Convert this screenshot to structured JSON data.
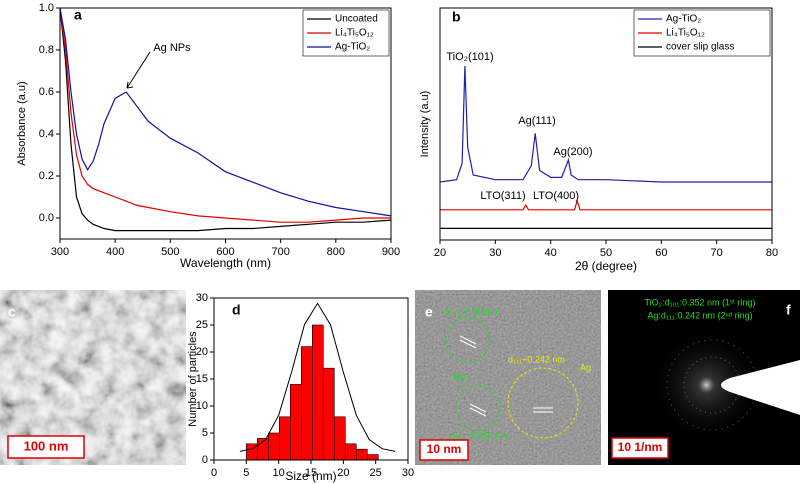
{
  "chart_data": [
    {
      "type": "line",
      "panel": "a",
      "xlabel": "Wavelength (nm)",
      "ylabel": "Absorbance (a.u)",
      "x": [
        300,
        310,
        320,
        330,
        340,
        350,
        360,
        370,
        380,
        400,
        420,
        440,
        460,
        500,
        550,
        600,
        650,
        700,
        750,
        800,
        850,
        900
      ],
      "series": [
        {
          "name": "Uncoated",
          "color": "#000000",
          "values": [
            1.0,
            0.75,
            0.35,
            0.1,
            0.02,
            -0.01,
            -0.03,
            -0.04,
            -0.05,
            -0.06,
            -0.06,
            -0.06,
            -0.06,
            -0.06,
            -0.06,
            -0.05,
            -0.05,
            -0.04,
            -0.03,
            -0.02,
            -0.02,
            -0.01
          ]
        },
        {
          "name": "Li₄Ti₅O₁₂",
          "color": "#e00000",
          "values": [
            1.0,
            0.8,
            0.5,
            0.3,
            0.2,
            0.16,
            0.14,
            0.13,
            0.12,
            0.1,
            0.08,
            0.06,
            0.05,
            0.03,
            0.01,
            0.0,
            -0.01,
            -0.02,
            -0.02,
            -0.01,
            0.0,
            0.0
          ]
        },
        {
          "name": "Ag-TiO₂",
          "color": "#1010a0",
          "values": [
            1.0,
            0.85,
            0.6,
            0.4,
            0.28,
            0.23,
            0.27,
            0.35,
            0.45,
            0.57,
            0.6,
            0.53,
            0.46,
            0.38,
            0.31,
            0.22,
            0.17,
            0.12,
            0.08,
            0.05,
            0.03,
            0.01
          ]
        }
      ],
      "annotations": [
        "Ag NPs"
      ],
      "xlim": [
        300,
        900
      ],
      "xticks": [
        300,
        400,
        500,
        600,
        700,
        800,
        900
      ],
      "ylim": [
        -0.1,
        1.0
      ],
      "yticks": [
        {
          "value": 0,
          "label": "0.0"
        },
        0.2,
        0.4,
        0.6,
        0.8,
        {
          "value": 1,
          "label": "1.0"
        }
      ],
      "legend": "upper right"
    },
    {
      "type": "line",
      "panel": "b",
      "xlabel": "2θ (degree)",
      "ylabel": "Intensity (a.u)",
      "series": [
        {
          "name": "Ag-TiO₂",
          "color": "#2020b0",
          "x": [
            20,
            23,
            24,
            24.5,
            25,
            26,
            30,
            35,
            36.5,
            37.2,
            38,
            40,
            42,
            43.2,
            43.7,
            45,
            50,
            60,
            70,
            80
          ],
          "values": [
            2.5,
            2.6,
            3.3,
            7.5,
            4.0,
            2.8,
            2.6,
            2.6,
            3.2,
            4.6,
            3.0,
            2.7,
            2.7,
            3.45,
            2.8,
            2.6,
            2.6,
            2.5,
            2.5,
            2.5
          ]
        },
        {
          "name": "Li₄Ti₅O₁₂",
          "color": "#e00000",
          "x": [
            20,
            35,
            35.5,
            36,
            44.3,
            44.8,
            45.3,
            80
          ],
          "values": [
            1.3,
            1.3,
            1.5,
            1.3,
            1.3,
            1.7,
            1.3,
            1.3
          ]
        },
        {
          "name": "cover slip glass",
          "color": "#000000",
          "x": [
            20,
            50,
            80
          ],
          "values": [
            0.5,
            0.5,
            0.5
          ]
        }
      ],
      "annotations": [
        "TiO₂(101)",
        "Ag(111)",
        "Ag(200)",
        "LTO(311)",
        "LTO(400)"
      ],
      "xlim": [
        20,
        80
      ],
      "xticks": [
        20,
        30,
        40,
        50,
        60,
        70,
        80
      ],
      "ylim": [
        0,
        10
      ],
      "legend": "upper right"
    },
    {
      "type": "histogram",
      "panel": "d",
      "xlabel": "Size (nm)",
      "ylabel": "Number of particles",
      "bins": [
        5,
        6.7,
        8.4,
        10.1,
        11.8,
        13.5,
        15.2,
        16.9,
        18.6,
        20.3,
        22,
        23.7,
        25.4
      ],
      "values": [
        3,
        4,
        5,
        8,
        14,
        21,
        25,
        17,
        8,
        3,
        2,
        1
      ],
      "color": "#ff0000",
      "fit": {
        "x": [
          4,
          6,
          8,
          10,
          12,
          14,
          16,
          18,
          20,
          22,
          24,
          26,
          28
        ],
        "values": [
          1.6,
          2.1,
          3.8,
          8.3,
          16.3,
          25.1,
          29,
          25.1,
          16.3,
          8.3,
          3.8,
          2.1,
          1.6
        ]
      },
      "xlim": [
        0,
        30
      ],
      "xticks": [
        0,
        5,
        10,
        15,
        20,
        25,
        30
      ],
      "ylim": [
        0,
        30
      ],
      "yticks": [
        0,
        5,
        10,
        15,
        20,
        25,
        30
      ]
    }
  ],
  "images": [
    {
      "panel": "c",
      "scale_bar": "100 nm"
    },
    {
      "panel": "e",
      "scale_bar": "10 nm",
      "labels": [
        "d₁₀₁~0.352nm",
        "TiO₂",
        "d₁₁₁~0.242 nm",
        "Ag",
        "d₁₀₁~0.352 nm"
      ]
    },
    {
      "panel": "f",
      "scale_bar": "10 1/nm",
      "labels": [
        "TiO₂:d₁₀₁:0.352 nm (1ˢᵗ ring)",
        "Ag:d₁₁₁:0.242 nm (2ⁿᵈ ring)"
      ]
    }
  ]
}
